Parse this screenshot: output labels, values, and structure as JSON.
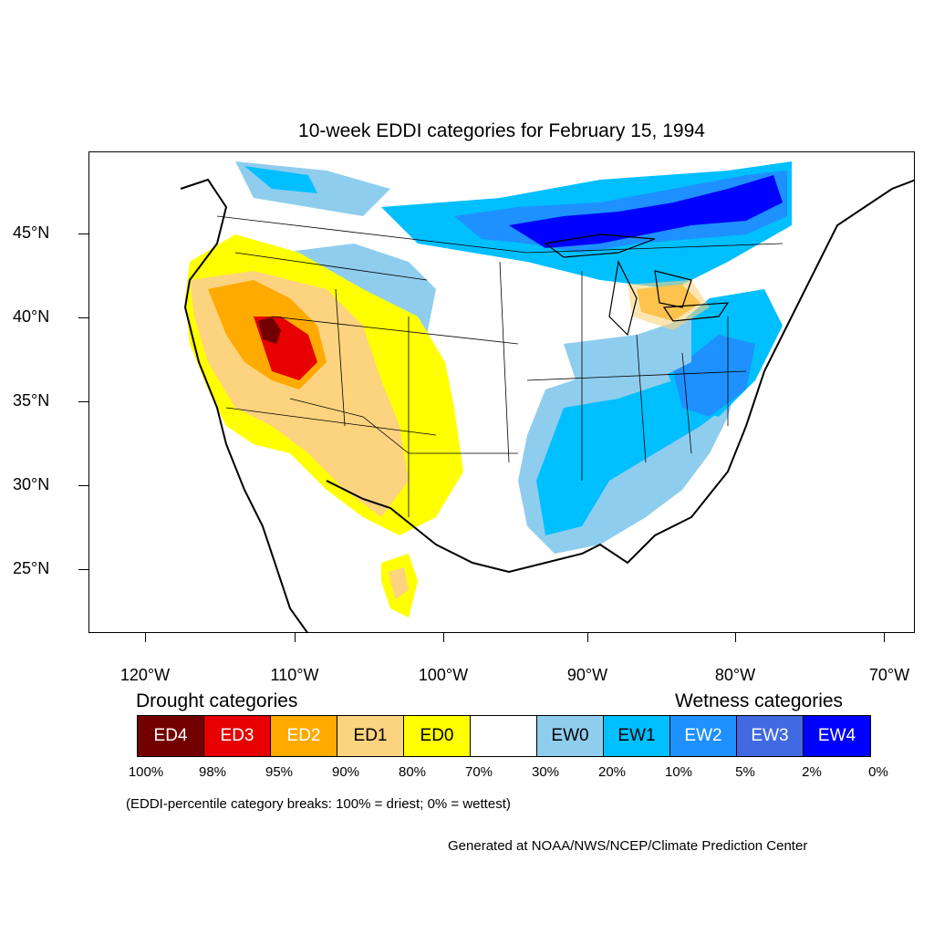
{
  "title": "10-week EDDI categories for February 15, 1994",
  "lat_labels": [
    "45°N",
    "40°N",
    "35°N",
    "30°N",
    "25°N"
  ],
  "lon_labels": [
    "120°W",
    "110°W",
    "100°W",
    "90°W",
    "80°W",
    "70°W"
  ],
  "legend": {
    "drought_title": "Drought categories",
    "wetness_title": "Wetness categories",
    "categories": [
      {
        "label": "ED4",
        "color": "#730000",
        "text_color": "#ffffff"
      },
      {
        "label": "ED3",
        "color": "#e60000",
        "text_color": "#ffffff"
      },
      {
        "label": "ED2",
        "color": "#ffaa00",
        "text_color": "#ffffff"
      },
      {
        "label": "ED1",
        "color": "#fcd37f",
        "text_color": "#000000"
      },
      {
        "label": "ED0",
        "color": "#ffff00",
        "text_color": "#000000"
      },
      {
        "label": "",
        "color": "#ffffff",
        "text_color": "#000000"
      },
      {
        "label": "EW0",
        "color": "#8fcdee",
        "text_color": "#000000"
      },
      {
        "label": "EW1",
        "color": "#00bfff",
        "text_color": "#000000"
      },
      {
        "label": "EW2",
        "color": "#1e90ff",
        "text_color": "#ffffff"
      },
      {
        "label": "EW3",
        "color": "#4169e1",
        "text_color": "#ffffff"
      },
      {
        "label": "EW4",
        "color": "#0000ff",
        "text_color": "#ffffff"
      }
    ],
    "breaks": [
      "100%",
      "98%",
      "95%",
      "90%",
      "80%",
      "70%",
      "30%",
      "20%",
      "10%",
      "5%",
      "2%",
      "0%"
    ]
  },
  "note": "(EDDI-percentile category breaks: 100% = driest; 0% = wettest)",
  "credit": "Generated at NOAA/NWS/NCEP/Climate Prediction Center"
}
